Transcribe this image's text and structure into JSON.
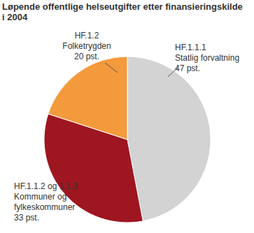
{
  "chart_data": {
    "type": "pie",
    "title": "Løpende offentlige helseutgifter etter finansieringskilde i 2004",
    "categories": [
      "HF.1.1.1\nStatlig forvaltning",
      "HF.1.1.2 og 1.1.3\nKommuner og\nfylkeskommuner",
      "HF.1.2\nFolketrygden"
    ],
    "values": [
      47,
      33,
      20
    ],
    "value_labels": [
      "47 pst.",
      "33 pst.",
      "20 pst."
    ],
    "colors": [
      "#d3d3d3",
      "#9e1620",
      "#f39a3c"
    ],
    "data_labels": true
  }
}
